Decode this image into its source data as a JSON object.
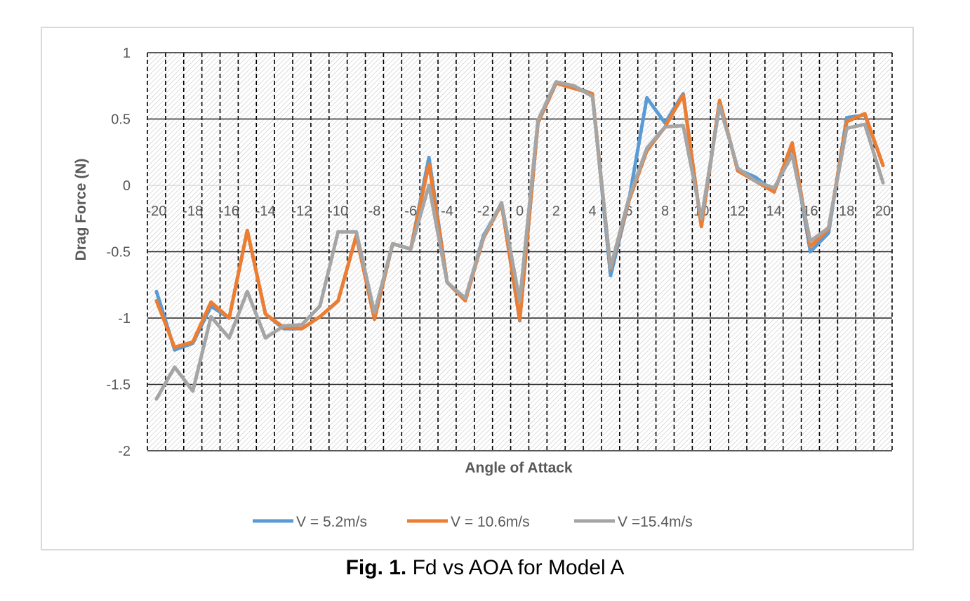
{
  "caption": {
    "prefix": "Fig. 1.",
    "text": " Fd vs AOA for Model A"
  },
  "chart_data": {
    "type": "line",
    "title": "",
    "xlabel": "Angle of Attack",
    "ylabel": "Drag Force (N)",
    "ylim": [
      -2,
      1
    ],
    "yticks": [
      1,
      0.5,
      0,
      -0.5,
      -1,
      -1.5,
      -2
    ],
    "x": [
      -20,
      -19,
      -18,
      -17,
      -16,
      -15,
      -14,
      -13,
      -12,
      -11,
      -10,
      -9,
      -8,
      -7,
      -6,
      -5,
      -4,
      -3,
      -2,
      -1,
      0,
      1,
      2,
      3,
      4,
      5,
      6,
      7,
      8,
      9,
      10,
      11,
      12,
      13,
      14,
      15,
      16,
      17,
      18,
      19,
      20
    ],
    "xtick_labels": [
      "-20",
      "-18",
      "-16",
      "-14",
      "-12",
      "-10",
      "-8",
      "-6",
      "-4",
      "-2",
      "0",
      "2",
      "4",
      "6",
      "8",
      "10",
      "12",
      "14",
      "16",
      "18",
      "20"
    ],
    "grid": "on",
    "legend_position": "bottom",
    "series": [
      {
        "name": "V = 5.2m/s",
        "color": "#5b9bd5",
        "values": [
          -0.8,
          -1.24,
          -1.19,
          -0.91,
          -1.0,
          -0.34,
          -0.97,
          -1.08,
          -1.08,
          -0.99,
          -0.87,
          -0.38,
          -1.0,
          -0.44,
          -0.48,
          0.21,
          -0.73,
          -0.86,
          -0.38,
          -0.14,
          -1.02,
          0.47,
          0.77,
          0.74,
          0.69,
          -0.68,
          -0.12,
          0.66,
          0.47,
          0.69,
          -0.31,
          0.63,
          0.12,
          0.06,
          -0.05,
          0.3,
          -0.5,
          -0.36,
          0.51,
          0.53,
          0.15
        ]
      },
      {
        "name": "V = 10.6m/s",
        "color": "#ed7d31",
        "values": [
          -0.87,
          -1.22,
          -1.18,
          -0.88,
          -1.0,
          -0.34,
          -0.97,
          -1.07,
          -1.08,
          -0.99,
          -0.87,
          -0.38,
          -1.01,
          -0.44,
          -0.48,
          0.16,
          -0.73,
          -0.87,
          -0.4,
          -0.14,
          -1.01,
          0.47,
          0.77,
          0.73,
          0.69,
          -0.63,
          -0.12,
          0.26,
          0.44,
          0.68,
          -0.31,
          0.64,
          0.11,
          0.03,
          -0.05,
          0.32,
          -0.46,
          -0.33,
          0.48,
          0.54,
          0.15
        ]
      },
      {
        "name": "V =15.4m/s",
        "color": "#a5a5a5",
        "values": [
          -1.61,
          -1.37,
          -1.55,
          -0.99,
          -1.15,
          -0.8,
          -1.15,
          -1.06,
          -1.05,
          -0.91,
          -0.35,
          -0.35,
          -0.96,
          -0.44,
          -0.48,
          0.0,
          -0.73,
          -0.85,
          -0.39,
          -0.13,
          -0.87,
          0.49,
          0.78,
          0.75,
          0.67,
          -0.62,
          -0.1,
          0.28,
          0.44,
          0.45,
          -0.25,
          0.6,
          0.13,
          0.03,
          -0.02,
          0.23,
          -0.42,
          -0.32,
          0.43,
          0.46,
          0.02
        ]
      }
    ]
  }
}
